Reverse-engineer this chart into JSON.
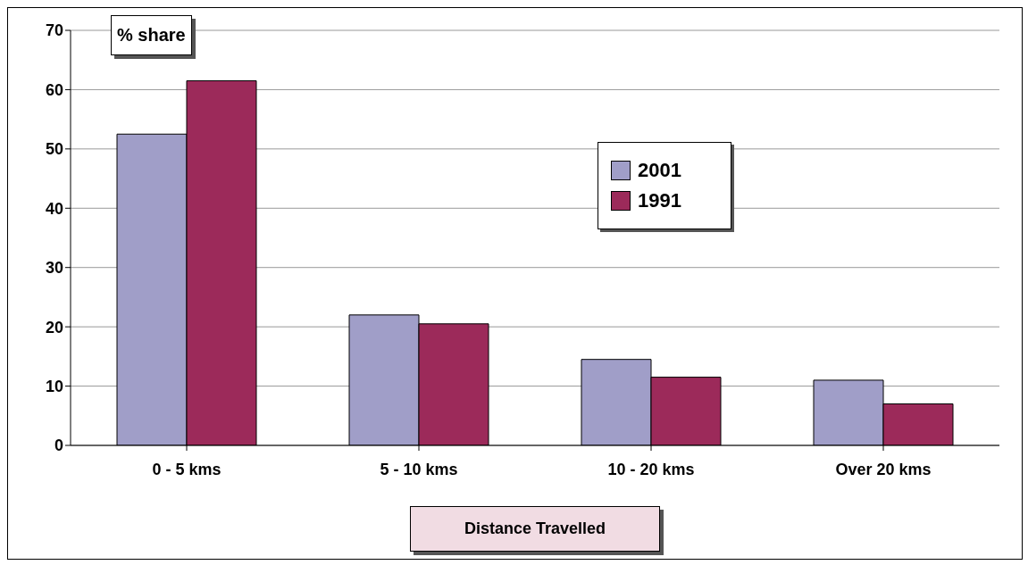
{
  "chart_data": {
    "type": "bar",
    "ylabel": "% share",
    "xlabel": "Distance Travelled",
    "categories": [
      "0 - 5 kms",
      "5 - 10 kms",
      "10 - 20 kms",
      "Over 20 kms"
    ],
    "series": [
      {
        "name": "2001",
        "color": "#a09ec8",
        "values": [
          52.5,
          22,
          14.5,
          11
        ]
      },
      {
        "name": "1991",
        "color": "#9c2a5a",
        "values": [
          61.5,
          20.5,
          11.5,
          7
        ]
      }
    ],
    "ylim": [
      0,
      70
    ],
    "yticks": [
      0,
      10,
      20,
      30,
      40,
      50,
      60,
      70
    ],
    "grid": "y",
    "legend": "top"
  }
}
